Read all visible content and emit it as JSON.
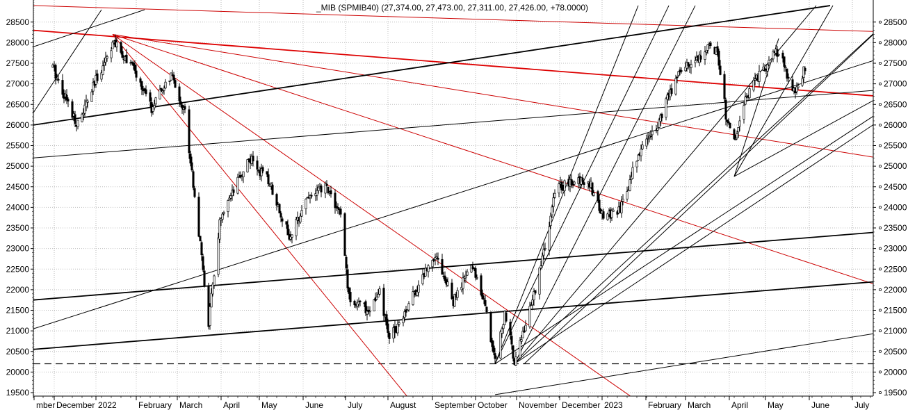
{
  "chart_data": {
    "type": "candlestick",
    "title": "_MIB (SPMIB40) (27,374.00, 27,473.00, 27,311.00, 27,426.00, +78.0000)",
    "grid": true,
    "y_axis": {
      "ticks": [
        "28500",
        "28000",
        "27500",
        "27000",
        "26500",
        "26000",
        "25500",
        "25000",
        "24500",
        "24000",
        "23500",
        "23000",
        "22500",
        "22000",
        "21500",
        "21000",
        "20500",
        "20000",
        "19500"
      ],
      "ylim": [
        19400,
        28800
      ]
    },
    "x_axis": {
      "labels": [
        "mber",
        "December",
        "2022",
        "February",
        "March",
        "April",
        "May",
        "June",
        "July",
        "August",
        "September",
        "October",
        "November",
        "December",
        "2023",
        "February",
        "March",
        "April",
        "May",
        "June",
        "July"
      ]
    },
    "price_anchors": [
      {
        "date": "2021-11-15",
        "close": 27400
      },
      {
        "date": "2021-11-25",
        "close": 26600
      },
      {
        "date": "2021-12-03",
        "close": 26000
      },
      {
        "date": "2021-12-15",
        "close": 27000
      },
      {
        "date": "2021-12-28",
        "close": 28000
      },
      {
        "date": "2022-01-10",
        "close": 27500
      },
      {
        "date": "2022-01-25",
        "close": 26400
      },
      {
        "date": "2022-02-08",
        "close": 27200
      },
      {
        "date": "2022-02-18",
        "close": 26300
      },
      {
        "date": "2022-02-25",
        "close": 24300
      },
      {
        "date": "2022-03-07",
        "close": 21200
      },
      {
        "date": "2022-03-15",
        "close": 23600
      },
      {
        "date": "2022-03-28",
        "close": 24600
      },
      {
        "date": "2022-04-05",
        "close": 25200
      },
      {
        "date": "2022-04-20",
        "close": 24600
      },
      {
        "date": "2022-05-05",
        "close": 23200
      },
      {
        "date": "2022-05-15",
        "close": 24200
      },
      {
        "date": "2022-05-31",
        "close": 24500
      },
      {
        "date": "2022-06-10",
        "close": 23800
      },
      {
        "date": "2022-06-16",
        "close": 21800
      },
      {
        "date": "2022-06-30",
        "close": 21500
      },
      {
        "date": "2022-07-08",
        "close": 21900
      },
      {
        "date": "2022-07-15",
        "close": 20800
      },
      {
        "date": "2022-07-28",
        "close": 21600
      },
      {
        "date": "2022-08-17",
        "close": 22900
      },
      {
        "date": "2022-08-30",
        "close": 21700
      },
      {
        "date": "2022-09-12",
        "close": 22600
      },
      {
        "date": "2022-09-20",
        "close": 21900
      },
      {
        "date": "2022-09-29",
        "close": 20300
      },
      {
        "date": "2022-10-06",
        "close": 21400
      },
      {
        "date": "2022-10-13",
        "close": 20300
      },
      {
        "date": "2022-10-25",
        "close": 21600
      },
      {
        "date": "2022-11-05",
        "close": 23200
      },
      {
        "date": "2022-11-12",
        "close": 24500
      },
      {
        "date": "2022-11-25",
        "close": 24600
      },
      {
        "date": "2022-12-05",
        "close": 24700
      },
      {
        "date": "2022-12-15",
        "close": 23800
      },
      {
        "date": "2022-12-28",
        "close": 23900
      },
      {
        "date": "2023-01-10",
        "close": 25300
      },
      {
        "date": "2023-01-25",
        "close": 26100
      },
      {
        "date": "2023-02-08",
        "close": 27300
      },
      {
        "date": "2023-02-20",
        "close": 27600
      },
      {
        "date": "2023-03-03",
        "close": 27900
      },
      {
        "date": "2023-03-08",
        "close": 27800
      },
      {
        "date": "2023-03-15",
        "close": 26000
      },
      {
        "date": "2023-03-20",
        "close": 25600
      },
      {
        "date": "2023-03-30",
        "close": 26800
      },
      {
        "date": "2023-04-15",
        "close": 27600
      },
      {
        "date": "2023-04-21",
        "close": 27800
      },
      {
        "date": "2023-05-03",
        "close": 26700
      },
      {
        "date": "2023-05-10",
        "close": 27400
      }
    ],
    "trendlines": [
      {
        "color": "#dd0000",
        "width": 1.8,
        "from": [
          "2021-11-01",
          28300
        ],
        "to": [
          "2023-07-20",
          26650
        ]
      },
      {
        "color": "#cc0000",
        "width": 1,
        "from": [
          "2021-12-28",
          28200
        ],
        "to": [
          "2022-07-28",
          19400
        ]
      },
      {
        "color": "#cc0000",
        "width": 1,
        "from": [
          "2021-12-28",
          28200
        ],
        "to": [
          "2023-01-05",
          19400
        ]
      },
      {
        "color": "#cc0000",
        "width": 1,
        "from": [
          "2021-12-28",
          28200
        ],
        "to": [
          "2023-07-20",
          21900
        ]
      },
      {
        "color": "#cc0000",
        "width": 1,
        "from": [
          "2021-12-28",
          28200
        ],
        "to": [
          "2023-07-20",
          25100
        ]
      },
      {
        "color": "#cc0000",
        "width": 1,
        "from": [
          "2021-11-01",
          28900
        ],
        "to": [
          "2023-07-20",
          28250
        ]
      },
      {
        "color": "#000000",
        "width": 1.8,
        "from": [
          "2021-11-01",
          26000
        ],
        "to": [
          "2023-05-28",
          28900
        ]
      },
      {
        "color": "#000000",
        "width": 1.8,
        "from": [
          "2021-11-01",
          21750
        ],
        "to": [
          "2023-07-20",
          23450
        ]
      },
      {
        "color": "#000000",
        "width": 1.8,
        "from": [
          "2021-11-01",
          20550
        ],
        "to": [
          "2023-07-20",
          22250
        ]
      },
      {
        "color": "#000000",
        "width": 1,
        "from": [
          "2021-11-01",
          25200
        ],
        "to": [
          "2023-07-20",
          26900
        ]
      },
      {
        "color": "#000000",
        "width": 1,
        "from": [
          "2021-11-01",
          21050
        ],
        "to": [
          "2023-07-20",
          27800
        ]
      },
      {
        "color": "#000000",
        "width": 1,
        "from": [
          "2021-11-01",
          26300
        ],
        "to": [
          "2021-12-20",
          28800
        ]
      },
      {
        "color": "#000000",
        "width": 1,
        "from": [
          "2021-11-01",
          27900
        ],
        "to": [
          "2022-01-20",
          28800
        ]
      },
      {
        "color": "#000000",
        "width": 1,
        "from": [
          "2022-09-29",
          20200
        ],
        "to": [
          "2023-07-20",
          26700
        ]
      },
      {
        "color": "#000000",
        "width": 1,
        "from": [
          "2022-10-13",
          20200
        ],
        "to": [
          "2023-07-20",
          26500
        ]
      },
      {
        "color": "#000000",
        "width": 1,
        "from": [
          "2022-09-29",
          19450
        ],
        "to": [
          "2023-07-20",
          21050
        ]
      },
      {
        "color": "#000000",
        "width": 1,
        "from": [
          "2022-09-29",
          20200
        ],
        "to": [
          "2023-01-10",
          28900
        ]
      },
      {
        "color": "#000000",
        "width": 1,
        "from": [
          "2022-09-29",
          20200
        ],
        "to": [
          "2023-02-01",
          28900
        ]
      },
      {
        "color": "#000000",
        "width": 1,
        "from": [
          "2022-10-13",
          20200
        ],
        "to": [
          "2023-02-20",
          28900
        ]
      },
      {
        "color": "#000000",
        "width": 1,
        "from": [
          "2022-10-13",
          20200
        ],
        "to": [
          "2023-05-18",
          28900
        ]
      },
      {
        "color": "#000000",
        "width": 1,
        "from": [
          "2022-10-13",
          20200
        ],
        "to": [
          "2023-07-20",
          28900
        ]
      },
      {
        "color": "#000000",
        "width": 1,
        "from": [
          "2022-10-20",
          20200
        ],
        "to": [
          "2023-07-20",
          28900
        ]
      },
      {
        "color": "#000000",
        "width": 1,
        "from": [
          "2023-03-20",
          24750
        ],
        "to": [
          "2023-04-21",
          28100
        ]
      },
      {
        "color": "#000000",
        "width": 1,
        "from": [
          "2023-03-20",
          24750
        ],
        "to": [
          "2023-07-20",
          27000
        ]
      },
      {
        "color": "#000000",
        "width": 1,
        "from": [
          "2023-03-20",
          24750
        ],
        "to": [
          "2023-05-30",
          28900
        ]
      }
    ],
    "horizontal_lines": [
      {
        "y": 20200,
        "style": "dashed",
        "color": "#000000"
      }
    ]
  }
}
